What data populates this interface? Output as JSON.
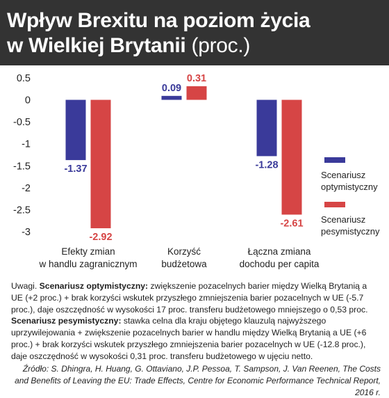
{
  "header": {
    "title_bold_line1": "Wpływ Brexitu na poziom życia",
    "title_bold_line2": "w Wielkiej Brytanii",
    "title_suffix": "(proc.)"
  },
  "chart_data": {
    "type": "bar",
    "categories": [
      "Efekty zmian w handlu zagranicznym",
      "Korzyść budżetowa",
      "Łączna zmiana dochodu per capita"
    ],
    "category_lines": [
      [
        "Efekty zmian",
        "w handlu zagranicznym"
      ],
      [
        "Korzyść",
        "budżetowa"
      ],
      [
        "Łączna zmiana",
        "dochodu per capita"
      ]
    ],
    "series": [
      {
        "name": "Scenariusz optymistyczny",
        "name_lines": [
          "Scenariusz",
          "optymistyczny"
        ],
        "color": "#3a3a9a",
        "values": [
          -1.37,
          0.09,
          -1.28
        ],
        "labels": [
          "-1.37",
          "0.09",
          "-1.28"
        ]
      },
      {
        "name": "Scenariusz pesymistyczny",
        "name_lines": [
          "Scenariusz",
          "pesymistyczny"
        ],
        "color": "#d64545",
        "values": [
          -2.92,
          0.31,
          -2.61
        ],
        "labels": [
          "-2.92",
          "0.31",
          "-2.61"
        ]
      }
    ],
    "yticks": [
      0.5,
      0,
      -0.5,
      -1,
      -1.5,
      -2,
      -2.5,
      -3
    ],
    "ytick_labels": [
      "0.5",
      "0",
      "-0.5",
      "-1",
      "-1.5",
      "-2",
      "-2.5",
      "-3"
    ],
    "ylim": [
      -3.15,
      0.5
    ],
    "grid": false,
    "legend": "right",
    "xlabel": "",
    "ylabel": ""
  },
  "note": {
    "prefix": "Uwagi.",
    "opt_label": "Scenariusz optymistyczny:",
    "opt_text": "zwiększenie pozacelnych barier między Wielką Brytanią a UE (+2 proc.) + brak korzyści wskutek przyszłego zmniejszenia barier pozacelnych w UE (-5.7 proc.), daje oszczędność w wysokości 17 proc. transferu budżetowego mniejszego o 0,53 proc.",
    "pes_label": "Scenariusz pesymistyczny:",
    "pes_text": "stawka celna dla kraju objętego klauzulą najwyższego uprzywilejowania + zwiększenie pozacelnych barier w handlu między Wielką Brytanią a UE (+6 proc.) + brak korzyści wskutek przyszłego zmniejszenia barier pozacelnych w UE (-12.8 proc.), daje oszczędność w wysokości 0,31 proc. transferu budżetowego w ujęciu netto."
  },
  "source": {
    "text": "Źródło: S. Dhingra, H. Huang, G. Ottaviano, J.P. Pessoa, T. Sampson, J. Van Reenen, The Costs and Benefits of Leaving the EU: Trade Effects, Centre for Economic Performance Technical Report, 2016 r."
  }
}
